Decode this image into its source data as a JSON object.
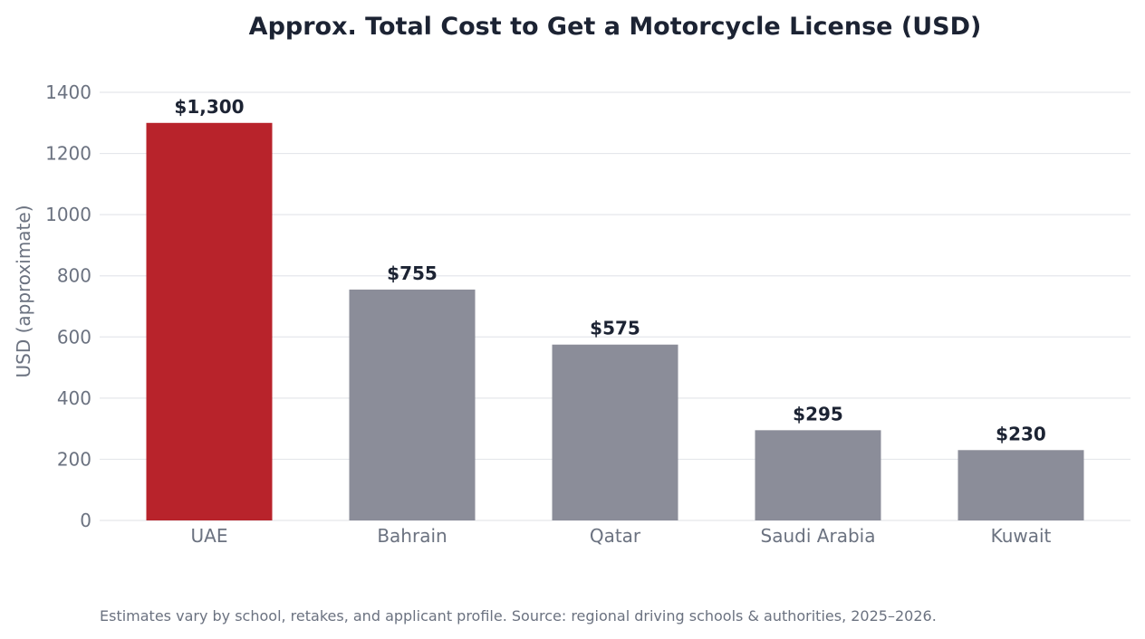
{
  "chart_data": {
    "type": "bar",
    "title": "Approx. Total Cost to Get a Motorcycle License (USD)",
    "xlabel": "",
    "ylabel": "USD (approximate)",
    "categories": [
      "UAE",
      "Bahrain",
      "Qatar",
      "Saudi Arabia",
      "Kuwait"
    ],
    "values": [
      1300,
      755,
      575,
      295,
      230
    ],
    "data_labels": [
      "$1,300",
      "$755",
      "$575",
      "$295",
      "$230"
    ],
    "bar_colors": [
      "#b8232b",
      "#8b8d99",
      "#8b8d99",
      "#8b8d99",
      "#8b8d99"
    ],
    "ylim": [
      0,
      1400
    ],
    "yticks": [
      0,
      200,
      400,
      600,
      800,
      1000,
      1200,
      1400
    ],
    "grid": true,
    "legend": "none"
  },
  "footnote": "Estimates vary by school, retakes, and applicant profile. Source: regional driving schools & authorities, 2025–2026."
}
